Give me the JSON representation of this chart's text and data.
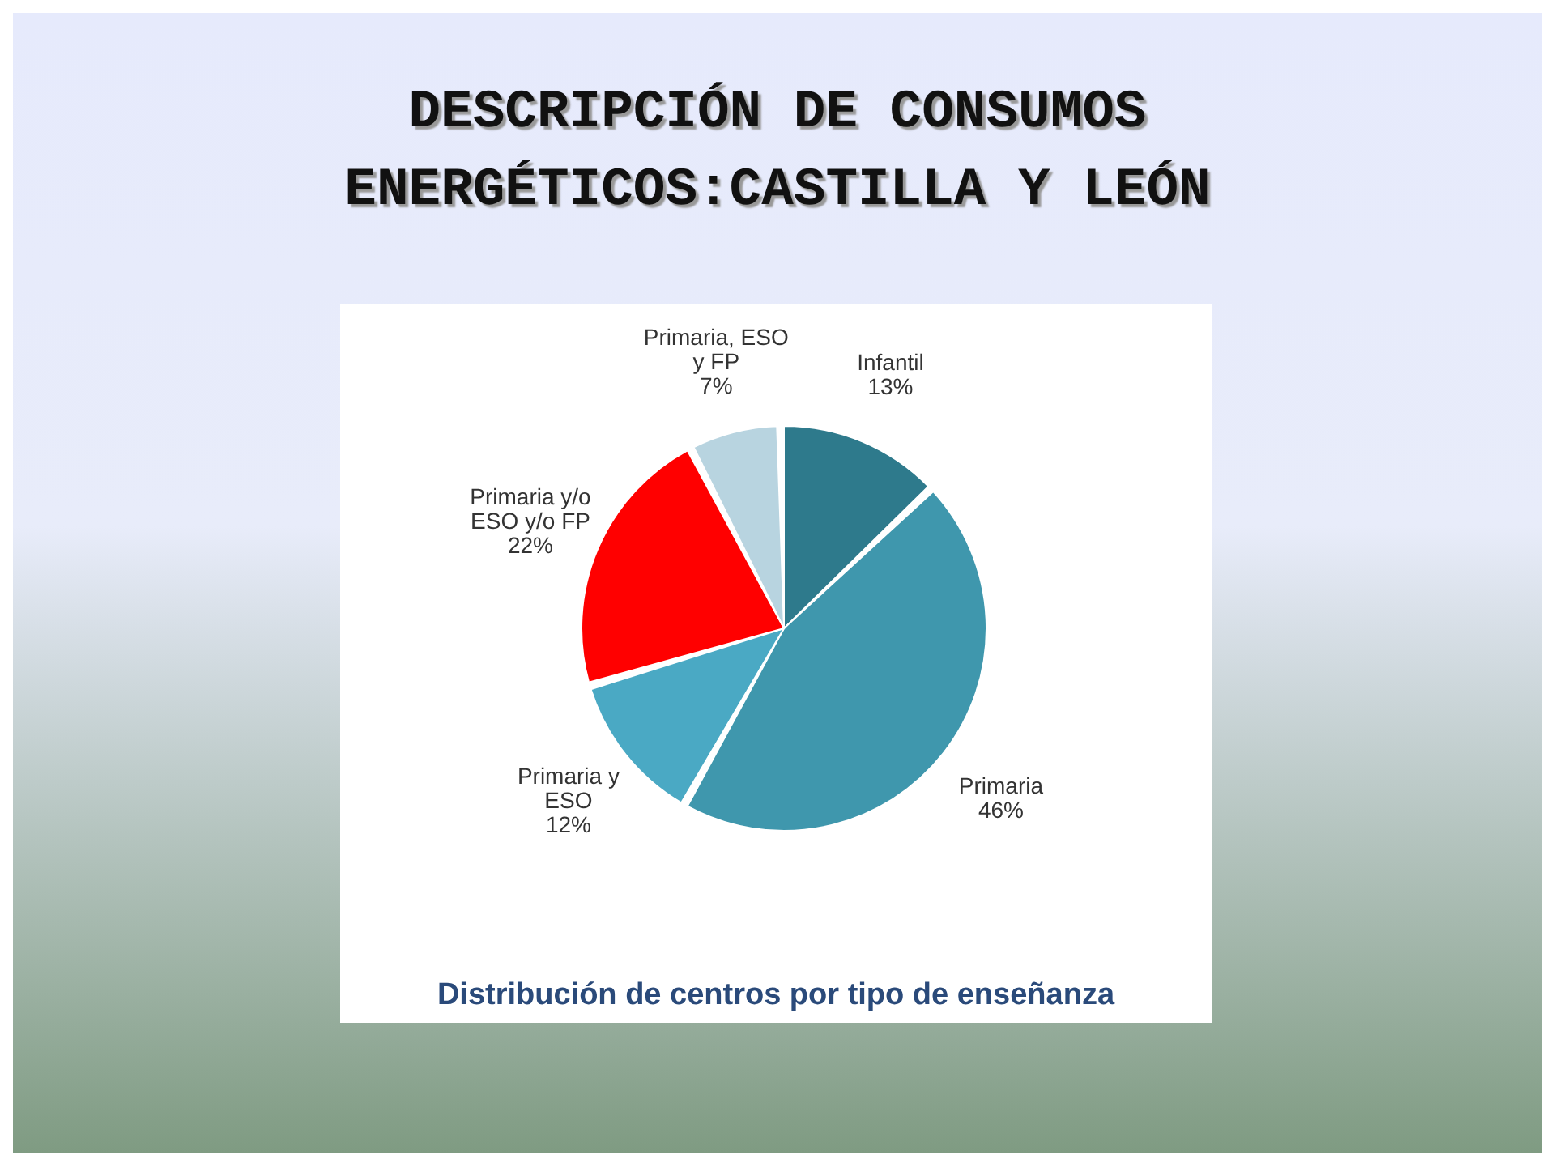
{
  "chart_data": {
    "type": "pie",
    "title": "DESCRIPCIÓN DE CONSUMOS ENERGÉTICOS:CASTILLA Y LEÓN",
    "subtitle": "Distribución de centros por tipo de enseñanza",
    "categories": [
      "Infantil",
      "Primaria",
      "Primaria y ESO",
      "Primaria y/o ESO y/o FP",
      "Primaria, ESO y FP"
    ],
    "values": [
      13,
      46,
      12,
      22,
      7
    ],
    "colors": [
      "#2e7a8c",
      "#3f97ad",
      "#4aa9c4",
      "#ff0000",
      "#b8d4e0"
    ],
    "value_labels": [
      "13%",
      "46%",
      "12%",
      "22%",
      "7%"
    ],
    "legend": false
  }
}
